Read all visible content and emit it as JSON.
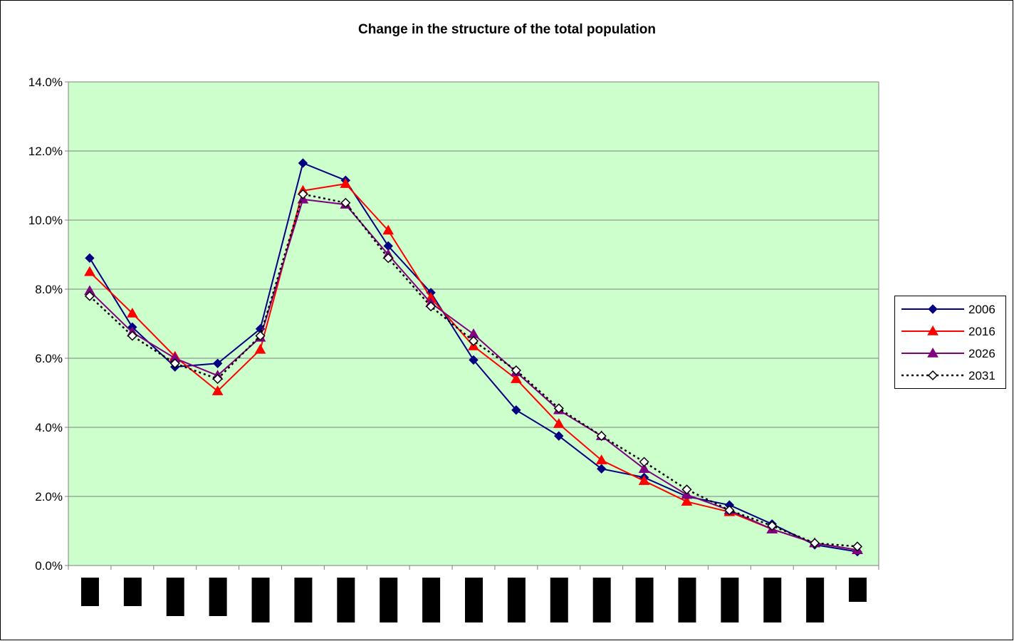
{
  "colors": {
    "plot_background": "#CCFFCC",
    "axis": "#808080",
    "frame": "#000000",
    "redaction": "#000000"
  },
  "chart_data": {
    "type": "line",
    "title": "Change in the structure of the total population",
    "xlabel": "",
    "ylabel": "",
    "ylim": [
      0,
      14
    ],
    "yticks": [
      "0.0%",
      "2.0%",
      "4.0%",
      "6.0%",
      "8.0%",
      "10.0%",
      "12.0%",
      "14.0%"
    ],
    "ytick_values": [
      0,
      2,
      4,
      6,
      8,
      10,
      12,
      14
    ],
    "y_unit": "percent",
    "grid": "horizontal",
    "legend_position": "right",
    "categories_count": 19,
    "category_labels_redacted": true,
    "redaction_bar_lengths": [
      "short",
      "short",
      "medium",
      "medium",
      "long",
      "long",
      "long",
      "long",
      "long",
      "long",
      "long",
      "long",
      "long",
      "long",
      "long",
      "long",
      "long",
      "long",
      "shortest"
    ],
    "series": [
      {
        "name": "2006",
        "color": "#000080",
        "marker": "diamond-filled",
        "line_style": "solid",
        "values": [
          8.9,
          6.9,
          5.75,
          5.85,
          6.85,
          11.65,
          11.15,
          9.25,
          7.9,
          5.95,
          4.5,
          3.75,
          2.8,
          2.55,
          2.0,
          1.75,
          1.2,
          0.6,
          0.4
        ]
      },
      {
        "name": "2016",
        "color": "#FF0000",
        "marker": "triangle-filled",
        "line_style": "solid",
        "values": [
          8.5,
          7.3,
          6.05,
          5.05,
          6.25,
          10.85,
          11.05,
          9.7,
          7.75,
          6.35,
          5.4,
          4.1,
          3.05,
          2.45,
          1.85,
          1.55,
          1.05,
          0.65,
          0.45
        ]
      },
      {
        "name": "2026",
        "color": "#800080",
        "marker": "triangle-filled",
        "line_style": "solid",
        "values": [
          7.95,
          6.75,
          6.0,
          5.5,
          6.6,
          10.6,
          10.45,
          9.0,
          7.6,
          6.7,
          5.6,
          4.5,
          3.75,
          2.8,
          2.05,
          1.6,
          1.05,
          0.65,
          0.45
        ]
      },
      {
        "name": "2031",
        "color": "#000000",
        "marker": "diamond-open",
        "line_style": "dotted",
        "values": [
          7.8,
          6.65,
          5.85,
          5.4,
          6.65,
          10.75,
          10.5,
          8.9,
          7.5,
          6.5,
          5.65,
          4.55,
          3.75,
          3.0,
          2.2,
          1.6,
          1.15,
          0.65,
          0.55
        ]
      }
    ]
  }
}
